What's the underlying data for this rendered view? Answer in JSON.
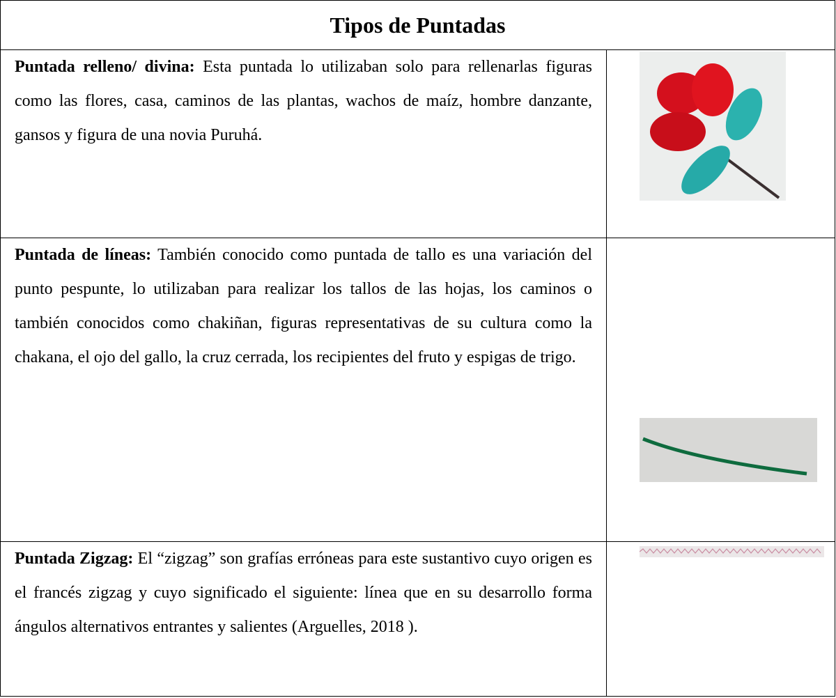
{
  "table": {
    "title": "Tipos de Puntadas",
    "rows": [
      {
        "label": "Puntada relleno/ divina:",
        "text": "Esta puntada lo utilizaban solo para rellenarlas figuras como las flores, casa, caminos de las plantas, wachos de maíz, hombre danzante, gansos y  figura de una novia Puruhá."
      },
      {
        "label": "Puntada de líneas:",
        "text": "También conocido como puntada de tallo es una variación del punto pespunte, lo utilizaban para realizar los tallos de las hojas, los caminos o también conocidos como chakiñan, figuras representativas de su cultura como la chakana, el ojo del gallo, la cruz cerrada, los recipientes del fruto y espigas de trigo."
      },
      {
        "label": "Puntada Zigzag:",
        "text": "El “zigzag” son grafías erróneas para este sustantivo cuyo origen es el francés zigzag y cuyo significado el siguiente: línea que en su desarrollo forma ángulos alternativos entrantes y salientes (Arguelles, 2018 )."
      }
    ]
  }
}
